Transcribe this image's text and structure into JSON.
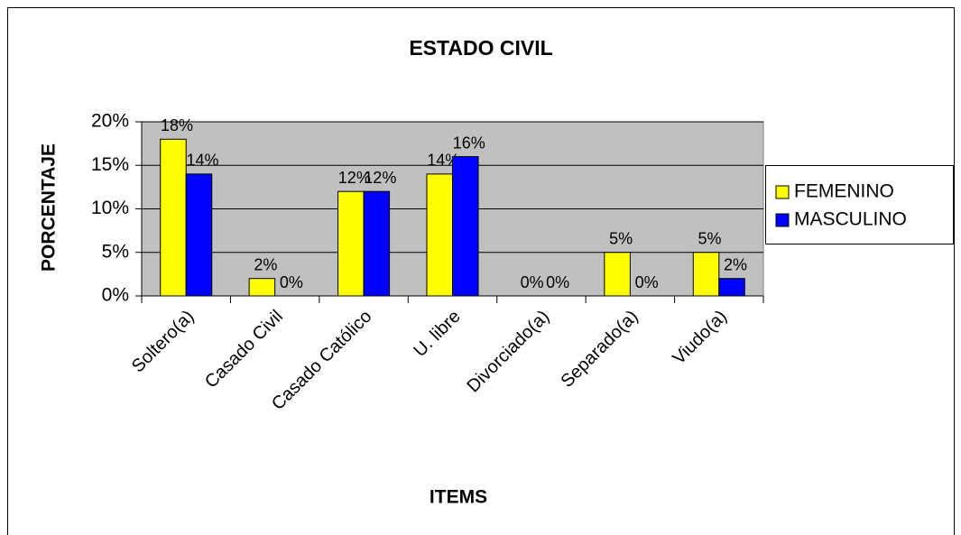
{
  "chart_data": {
    "type": "bar",
    "title": "ESTADO CIVIL",
    "y_label": "PORCENTAJE",
    "x_label": "ITEMS",
    "categories": [
      "Soltero(a)",
      "Casado Civil",
      "Casado Católico",
      "U. libre",
      "Divorciado(a)",
      "Separado(a)",
      "Viudo(a)"
    ],
    "series": [
      {
        "name": "FEMENINO",
        "color": "#ffff00",
        "values": [
          18,
          2,
          12,
          14,
          0,
          5,
          5
        ],
        "value_labels": [
          "18%",
          "2%",
          "12%",
          "14%",
          "0%",
          "5%",
          "5%"
        ]
      },
      {
        "name": "MASCULINO",
        "color": "#0000ff",
        "values": [
          14,
          0,
          12,
          16,
          0,
          0,
          2
        ],
        "value_labels": [
          "14%",
          "0%",
          "12%",
          "16%",
          "0%",
          "0%",
          "2%"
        ]
      }
    ],
    "ylim": [
      0,
      20
    ],
    "yticks": [
      {
        "value": 0,
        "label": "0%"
      },
      {
        "value": 5,
        "label": "5%"
      },
      {
        "value": 10,
        "label": "10%"
      },
      {
        "value": 15,
        "label": "15%"
      },
      {
        "value": 20,
        "label": "20%"
      }
    ],
    "grid": true,
    "legend": "right"
  }
}
